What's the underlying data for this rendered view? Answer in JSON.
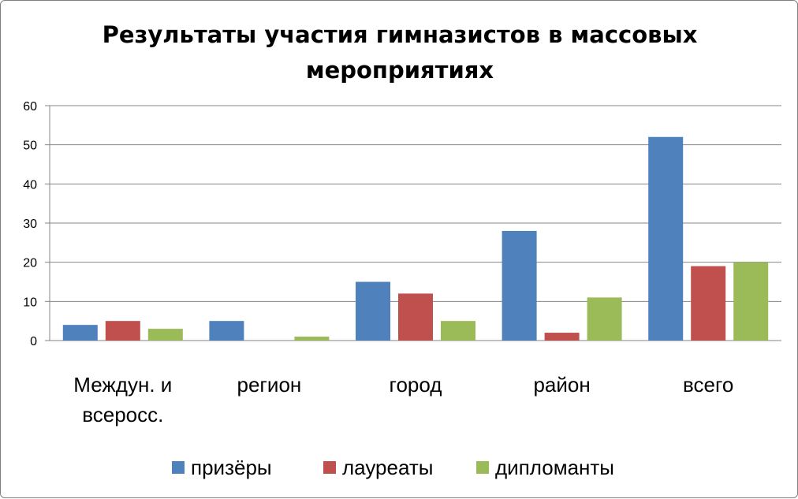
{
  "chart_data": {
    "type": "bar",
    "title_lines": [
      "Результаты участия гимназистов в массовых",
      "мероприятиях"
    ],
    "categories": [
      [
        "Междун. и",
        "всеросс."
      ],
      [
        "регион"
      ],
      [
        "город"
      ],
      [
        "район"
      ],
      [
        "всего"
      ]
    ],
    "series": [
      {
        "name": "призёры",
        "color": "#4f81bd",
        "values": [
          4,
          5,
          15,
          28,
          52
        ]
      },
      {
        "name": "лауреаты",
        "color": "#c0504d",
        "values": [
          5,
          0,
          12,
          2,
          19
        ]
      },
      {
        "name": "дипломанты",
        "color": "#9bbb59",
        "values": [
          3,
          1,
          5,
          11,
          20
        ]
      }
    ],
    "ylim": [
      0,
      60
    ],
    "yticks": [
      "0",
      "10",
      "20",
      "30",
      "40",
      "50",
      "60"
    ],
    "grid": true,
    "legend_position": "bottom"
  }
}
